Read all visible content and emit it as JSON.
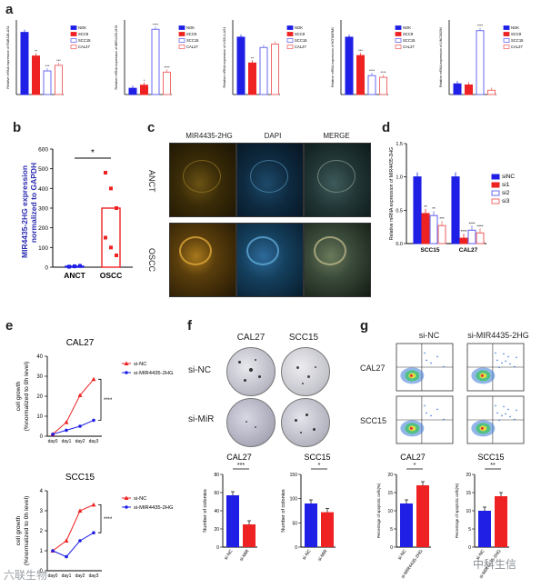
{
  "labels": {
    "a": "a",
    "b": "b",
    "c": "c",
    "d": "d",
    "e": "e",
    "f": "f",
    "g": "g"
  },
  "colors": {
    "blue": "#1f1fe6",
    "red": "#ee2222",
    "lightblue": "#6a6af2",
    "pink": "#f06a6a"
  },
  "panel_a": {
    "legend": [
      "NOK",
      "SCC9",
      "SCC15",
      "CAL27"
    ],
    "charts": [
      {
        "ylabel": "Relative mRNA expression of RAB11B-AS1",
        "values": [
          1.0,
          0.62,
          0.38,
          0.47
        ],
        "sig": [
          "",
          "**",
          "***",
          "***"
        ],
        "ylim": [
          0,
          1.2
        ]
      },
      {
        "ylabel": "Relative mRNA expression of MIR4435-2HG",
        "values": [
          1.0,
          1.5,
          10.5,
          3.6
        ],
        "sig": [
          "",
          "*",
          "****",
          "****"
        ],
        "ylim": [
          0,
          12
        ]
      },
      {
        "ylabel": "Relative mRNA expression of LOXL1-AS1",
        "values": [
          1.0,
          0.55,
          0.82,
          0.88
        ],
        "sig": [
          "",
          "**",
          "",
          ""
        ],
        "ylim": [
          0,
          1.3
        ]
      },
      {
        "ylabel": "Relative mRNA expression of HOTAIRM1",
        "values": [
          1.0,
          0.68,
          0.33,
          0.3
        ],
        "sig": [
          "",
          "***",
          "****",
          "****"
        ],
        "ylim": [
          0,
          1.3
        ]
      },
      {
        "ylabel": "Relative mRNA expression of LINC00294",
        "values": [
          1.0,
          0.9,
          6.0,
          0.4
        ],
        "sig": [
          "",
          "",
          "****",
          ""
        ],
        "ylim": [
          0,
          7
        ]
      }
    ]
  },
  "panel_b": {
    "ylabel": "MIR4435-2HG expression normalized to GAPDH",
    "categories": [
      "ANCT",
      "OSCC"
    ],
    "means": [
      5,
      300
    ],
    "points": [
      [
        2,
        4,
        6,
        3,
        5,
        7
      ],
      [
        480,
        400,
        300,
        150,
        100,
        60
      ]
    ],
    "sig": "*",
    "yticks": [
      "0",
      "100",
      "200",
      "300",
      "400",
      "500",
      "600"
    ]
  },
  "panel_c": {
    "columns": [
      "MIR4435-2HG",
      "DAPI",
      "MERGE"
    ],
    "rows": [
      "ANCT",
      "OSCC"
    ]
  },
  "panel_d": {
    "ylabel": "Relative mRNA expression of MIR4435-2HG",
    "legend": [
      "siNC",
      "si1",
      "si2",
      "si3"
    ],
    "groups": [
      {
        "name": "SCC15",
        "values": [
          1.0,
          0.45,
          0.42,
          0.27
        ],
        "sig": [
          "",
          "**",
          "**",
          "***"
        ]
      },
      {
        "name": "CAL27",
        "values": [
          1.0,
          0.08,
          0.2,
          0.16
        ],
        "sig": [
          "",
          "****",
          "****",
          "****"
        ]
      }
    ],
    "yticks": [
      "0.0",
      "0.5",
      "1.0",
      "1.5"
    ]
  },
  "panel_e": {
    "charts": [
      {
        "title": "CAL27",
        "ylabel": "cell growth (%normalized to 0h level)",
        "x": [
          "day0",
          "day1",
          "day2",
          "day3"
        ],
        "series": [
          {
            "name": "si-NC",
            "values": [
              1.0,
              7.0,
              20.5,
              28.5
            ]
          },
          {
            "name": "si-MIR4435-2HG",
            "values": [
              1.0,
              3.0,
              5.0,
              8.0
            ]
          }
        ],
        "sig": "****",
        "yticks": [
          "0",
          "10",
          "20",
          "30",
          "40"
        ]
      },
      {
        "title": "SCC15",
        "ylabel": "cell growth (%normalized to 0h level)",
        "x": [
          "day0",
          "day1",
          "day2",
          "day3"
        ],
        "series": [
          {
            "name": "si-NC",
            "values": [
              1.0,
              1.5,
              3.0,
              3.3
            ]
          },
          {
            "name": "si-MIR4435-2HG",
            "values": [
              1.0,
              0.7,
              1.5,
              1.9
            ]
          }
        ],
        "sig": "****",
        "yticks": [
          "0",
          "1",
          "2",
          "3",
          "4"
        ]
      }
    ]
  },
  "panel_f": {
    "cols": [
      "CAL27",
      "SCC15"
    ],
    "rows": [
      "si-NC",
      "si-MiR"
    ],
    "bars": [
      {
        "title": "CAL27",
        "ylabel": "Number of colonies",
        "categories": [
          "si-NC",
          "si-MiR"
        ],
        "values": [
          57,
          25
        ],
        "sig": "***",
        "yticks": [
          "0",
          "20",
          "40",
          "60",
          "80"
        ]
      },
      {
        "title": "SCC15",
        "ylabel": "Number of colonies",
        "categories": [
          "si-NC",
          "si-MiR"
        ],
        "values": [
          90,
          72
        ],
        "sig": "*",
        "yticks": [
          "0",
          "50",
          "100",
          "150"
        ]
      }
    ]
  },
  "panel_g": {
    "cols": [
      "si-NC",
      "si-MIR4435-2HG"
    ],
    "rows": [
      "CAL27",
      "SCC15"
    ],
    "bars": [
      {
        "title": "CAL27",
        "ylabel": "Percentage of apoptotic cells(%)",
        "categories": [
          "si-NC",
          "si-MIR4435-2HG"
        ],
        "values": [
          12,
          17
        ],
        "sig": "*",
        "yticks": [
          "0",
          "5",
          "10",
          "15",
          "20"
        ]
      },
      {
        "title": "SCC15",
        "ylabel": "Percentage of apoptotic cells(%)",
        "categories": [
          "si-NC",
          "si-MIR4435-2HG"
        ],
        "values": [
          10,
          14
        ],
        "sig": "**",
        "yticks": [
          "0",
          "5",
          "10",
          "15",
          "20"
        ]
      }
    ]
  },
  "watermarks": {
    "left": "六联生物",
    "right": "中科生信"
  }
}
